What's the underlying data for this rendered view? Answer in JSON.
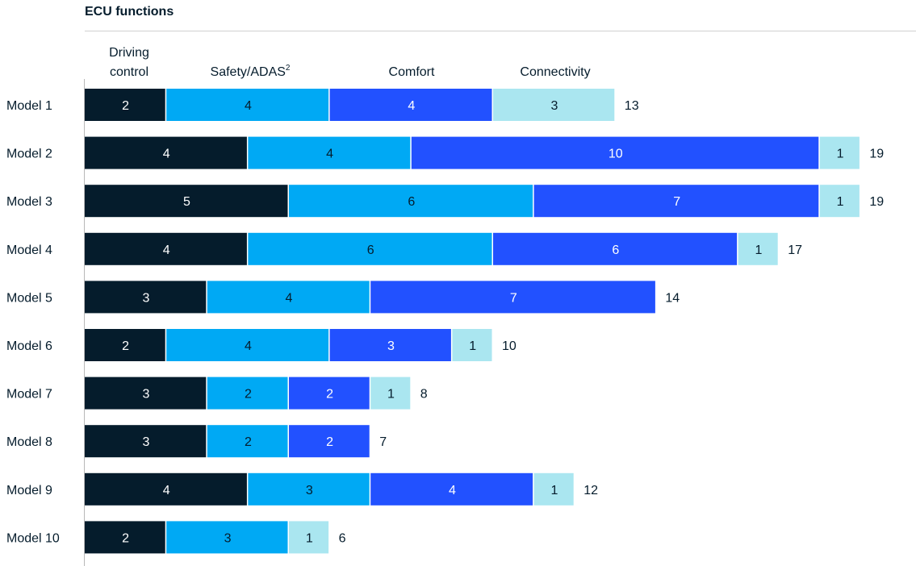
{
  "chart_data": {
    "type": "bar",
    "orientation": "horizontal",
    "stacked": true,
    "title": "ECU functions",
    "categories": [
      "Model 1",
      "Model 2",
      "Model 3",
      "Model 4",
      "Model 5",
      "Model 6",
      "Model 7",
      "Model 8",
      "Model 9",
      "Model 10"
    ],
    "series": [
      {
        "name": "Driving control",
        "color": "#051c2c",
        "label_color": "#ffffff",
        "values": [
          2,
          4,
          5,
          4,
          3,
          2,
          3,
          3,
          4,
          2
        ]
      },
      {
        "name": "Safety/ADAS",
        "name_sup": "2",
        "color": "#00a9f4",
        "label_color": "#051c2c",
        "values": [
          4,
          4,
          6,
          6,
          4,
          4,
          2,
          2,
          3,
          3
        ]
      },
      {
        "name": "Comfort",
        "color": "#2251ff",
        "label_color": "#ffffff",
        "values": [
          4,
          10,
          7,
          6,
          7,
          3,
          2,
          2,
          4,
          0
        ]
      },
      {
        "name": "Connectivity",
        "color": "#aae6f0",
        "label_color": "#051c2c",
        "values": [
          3,
          1,
          1,
          1,
          0,
          1,
          1,
          0,
          1,
          1
        ]
      }
    ],
    "totals": [
      13,
      19,
      19,
      17,
      14,
      10,
      8,
      7,
      12,
      6
    ],
    "legend_position": "top",
    "grid": false
  }
}
